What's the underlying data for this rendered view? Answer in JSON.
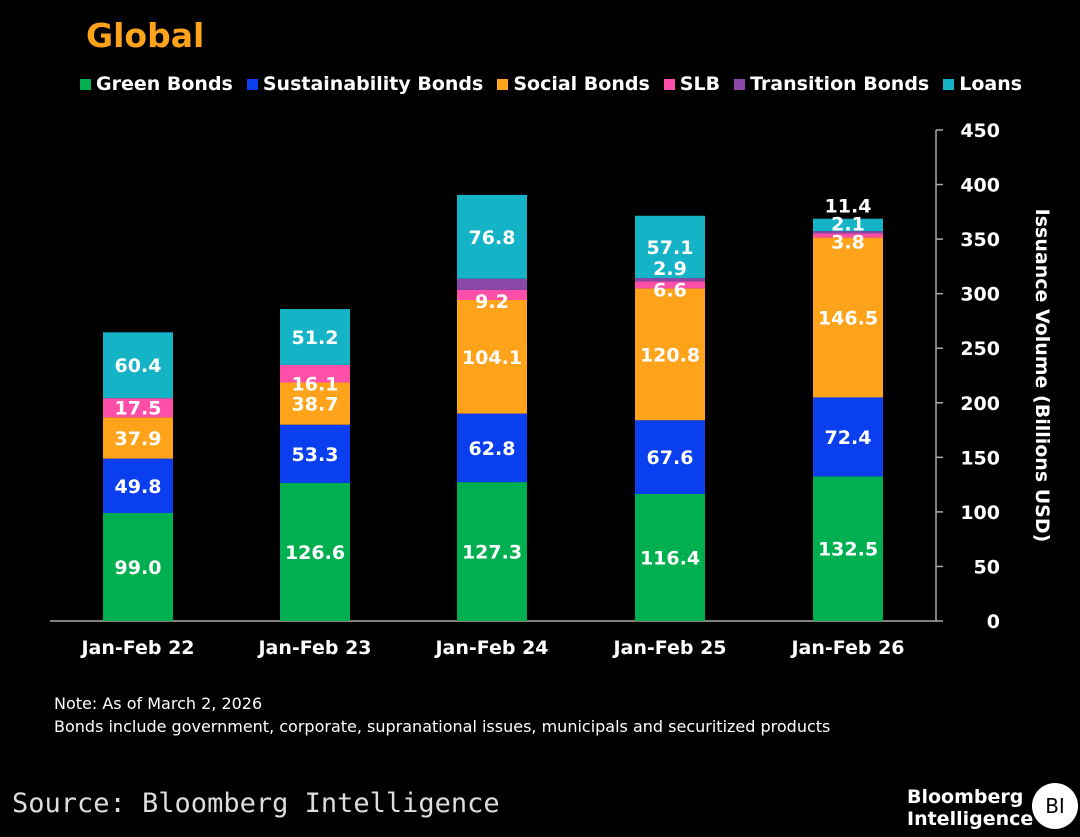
{
  "title": "Global",
  "note_lines": [
    "Note: As of March 2, 2026",
    "Bonds include government, corporate, supranational issues, municipals and securitized products"
  ],
  "source": "Source: Bloomberg Intelligence",
  "logo": {
    "line1": "Bloomberg",
    "line2": "Intelligence",
    "badge": "BI"
  },
  "chart_data": {
    "type": "bar",
    "stacked": true,
    "title": "Global",
    "ylabel": "Issuance Volume (Billions USD)",
    "xlabel": "",
    "ylim": [
      0,
      450
    ],
    "yticks": [
      0,
      50,
      100,
      150,
      200,
      250,
      300,
      350,
      400,
      450
    ],
    "y_axis_position": "right",
    "grid": false,
    "legend_position": "top",
    "categories": [
      "Jan-Feb 22",
      "Jan-Feb 23",
      "Jan-Feb 24",
      "Jan-Feb 25",
      "Jan-Feb 26"
    ],
    "series": [
      {
        "name": "Green Bonds",
        "color": "#00b050",
        "values": [
          99.0,
          126.6,
          127.3,
          116.4,
          132.5
        ],
        "labels": [
          "99.0",
          "126.6",
          "127.3",
          "116.4",
          "132.5"
        ]
      },
      {
        "name": "Sustainability Bonds",
        "color": "#0a3ff0",
        "values": [
          49.8,
          53.3,
          62.8,
          67.6,
          72.4
        ],
        "labels": [
          "49.8",
          "53.3",
          "62.8",
          "67.6",
          "72.4"
        ]
      },
      {
        "name": "Social Bonds",
        "color": "#ffa31a",
        "values": [
          37.9,
          38.7,
          104.1,
          120.8,
          146.5
        ],
        "labels": [
          "37.9",
          "38.7",
          "104.1",
          "120.8",
          "146.5"
        ]
      },
      {
        "name": "SLB",
        "color": "#ff4fa8",
        "values": [
          17.5,
          16.1,
          9.2,
          6.6,
          3.8
        ],
        "labels": [
          "17.5",
          "16.1",
          "9.2",
          "6.6",
          "3.8"
        ]
      },
      {
        "name": "Transition Bonds",
        "color": "#8b48a8",
        "values": [
          0,
          0,
          10.3,
          2.9,
          2.1
        ],
        "labels": [
          "",
          "",
          "",
          "2.9",
          "2.1"
        ]
      },
      {
        "name": "Loans",
        "color": "#14b3c6",
        "values": [
          60.4,
          51.2,
          76.8,
          57.1,
          11.4
        ],
        "labels": [
          "60.4",
          "51.2",
          "76.8",
          "57.1",
          "11.4"
        ]
      }
    ]
  }
}
